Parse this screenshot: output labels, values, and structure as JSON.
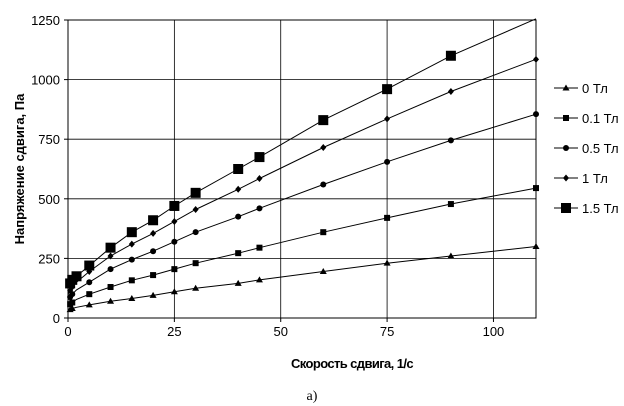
{
  "chart_data": {
    "type": "line",
    "xlabel": "Скорость сдвига, 1/с",
    "ylabel": "Напряжение сдвига, Па",
    "xlim": [
      0,
      110
    ],
    "ylim": [
      0,
      1250
    ],
    "xticks": [
      0,
      25,
      50,
      75,
      100
    ],
    "yticks": [
      0,
      250,
      500,
      750,
      1000,
      1250
    ],
    "grid": true,
    "legend_position": "right",
    "caption": "а)",
    "series": [
      {
        "name": "0 Тл",
        "marker": "triangle",
        "x": [
          0,
          0.5,
          1,
          2,
          5,
          10,
          15,
          20,
          25,
          30,
          40,
          45,
          60,
          75,
          90,
          110
        ],
        "y": [
          30,
          35,
          40,
          45,
          55,
          70,
          82,
          95,
          110,
          125,
          145,
          160,
          195,
          230,
          260,
          300
        ]
      },
      {
        "name": "0.1 Тл",
        "marker": "square-small",
        "x": [
          0,
          0.5,
          1,
          2,
          5,
          10,
          15,
          20,
          25,
          30,
          40,
          45,
          60,
          75,
          90,
          110
        ],
        "y": [
          50,
          58,
          65,
          78,
          100,
          130,
          158,
          180,
          205,
          230,
          272,
          295,
          360,
          420,
          478,
          545
        ]
      },
      {
        "name": "0.5 Тл",
        "marker": "circle",
        "x": [
          0,
          0.5,
          1,
          2,
          5,
          10,
          15,
          20,
          25,
          30,
          40,
          45,
          60,
          75,
          90,
          110
        ],
        "y": [
          75,
          88,
          100,
          118,
          150,
          205,
          245,
          280,
          320,
          360,
          425,
          460,
          560,
          655,
          745,
          855
        ]
      },
      {
        "name": "1 Тл",
        "marker": "diamond",
        "x": [
          0,
          0.5,
          1,
          2,
          5,
          10,
          15,
          20,
          25,
          30,
          40,
          45,
          60,
          75,
          90,
          110
        ],
        "y": [
          100,
          115,
          130,
          150,
          195,
          260,
          310,
          355,
          405,
          455,
          540,
          585,
          715,
          835,
          950,
          1085
        ]
      },
      {
        "name": "1.5 Тл",
        "marker": "square-large",
        "x": [
          0,
          0.5,
          1,
          2,
          5,
          10,
          15,
          20,
          25,
          30,
          40,
          45,
          60,
          75,
          90,
          110
        ],
        "y": [
          125,
          145,
          160,
          175,
          220,
          295,
          360,
          410,
          470,
          525,
          625,
          675,
          830,
          960,
          1100,
          1255
        ]
      }
    ]
  }
}
